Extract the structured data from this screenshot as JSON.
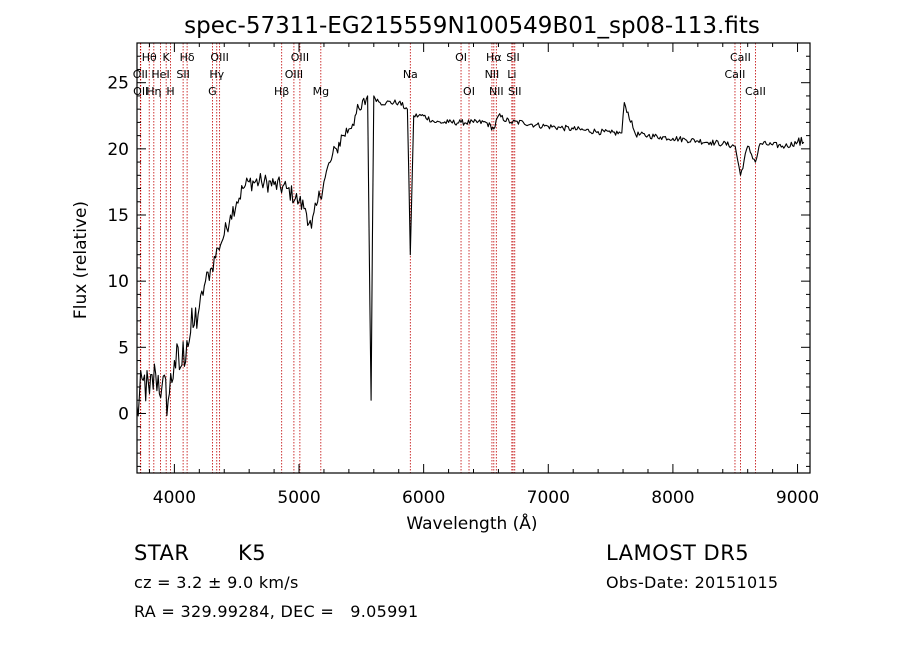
{
  "chart_data": {
    "type": "line",
    "title": "spec-57311-EG215559N100549B01_sp08-113.fits",
    "xlabel": "Wavelength (Å)",
    "ylabel": "Flux (relative)",
    "xlim": [
      3700,
      9100
    ],
    "ylim": [
      -4.5,
      28
    ],
    "x_ticks": [
      4000,
      5000,
      6000,
      7000,
      8000,
      9000
    ],
    "y_ticks": [
      0,
      5,
      10,
      15,
      20,
      25
    ],
    "grid": false,
    "legend": "none",
    "series": [
      {
        "x": [
          3700,
          3750,
          3800,
          3850,
          3900,
          3950,
          4000,
          4050,
          4100,
          4150,
          4200,
          4250,
          4300,
          4350,
          4400,
          4450,
          4500,
          4550,
          4600,
          4700,
          4800,
          4900,
          5000,
          5050,
          5100,
          5150,
          5200,
          5250,
          5300,
          5350,
          5400,
          5450,
          5500,
          5550,
          5578,
          5600,
          5650,
          5700,
          5800,
          5870,
          5893,
          5920,
          6000,
          6100,
          6200,
          6300,
          6400,
          6500,
          6563,
          6600,
          6700,
          6800,
          6900,
          7000,
          7100,
          7200,
          7300,
          7400,
          7500,
          7590,
          7610,
          7700,
          7800,
          7900,
          8000,
          8100,
          8200,
          8300,
          8400,
          8500,
          8542,
          8600,
          8662,
          8700,
          8800,
          8900,
          9000,
          9050
        ],
        "y": [
          0,
          2.5,
          1.5,
          3,
          2,
          1,
          4,
          3.5,
          5.5,
          6.5,
          8,
          10,
          11,
          12.5,
          13.5,
          15,
          16,
          17,
          17.5,
          17.5,
          17.3,
          17,
          16,
          15.5,
          14,
          16,
          17.5,
          19,
          20,
          21,
          21.5,
          22.5,
          23,
          24,
          1,
          24,
          23.5,
          23.5,
          23.5,
          23,
          12,
          22.5,
          22.5,
          22,
          22,
          22,
          22,
          22,
          21.5,
          22.5,
          22,
          22,
          21.8,
          21.7,
          21.6,
          21.5,
          21.4,
          21.3,
          21.2,
          21.2,
          23.5,
          21.1,
          21,
          20.9,
          20.8,
          20.7,
          20.6,
          20.5,
          20.4,
          20.2,
          18,
          20.2,
          19,
          20.4,
          20.3,
          20.2,
          20.5,
          20.5
        ]
      }
    ],
    "lines": [
      {
        "label": "Hθ",
        "x": 3798,
        "row": 0
      },
      {
        "label": "OII",
        "x": 3727,
        "row": 1
      },
      {
        "label": "OII",
        "x": 3730,
        "row": 2
      },
      {
        "label": "Hη",
        "x": 3835,
        "row": 2
      },
      {
        "label": "K",
        "x": 3934,
        "row": 0
      },
      {
        "label": "HeI",
        "x": 3889,
        "row": 1
      },
      {
        "label": "H",
        "x": 3969,
        "row": 2
      },
      {
        "label": "Hδ",
        "x": 4102,
        "row": 0
      },
      {
        "label": "SII",
        "x": 4070,
        "row": 1
      },
      {
        "label": "OIII",
        "x": 4363,
        "row": 0
      },
      {
        "label": "Hγ",
        "x": 4340,
        "row": 1
      },
      {
        "label": "G",
        "x": 4305,
        "row": 2
      },
      {
        "label": "OIII",
        "x": 5007,
        "row": 0
      },
      {
        "label": "OIII",
        "x": 4959,
        "row": 1
      },
      {
        "label": "Hβ",
        "x": 4861,
        "row": 2
      },
      {
        "label": "Mg",
        "x": 5175,
        "row": 2
      },
      {
        "label": "Na",
        "x": 5893,
        "row": 1
      },
      {
        "label": "OI",
        "x": 6300,
        "row": 0
      },
      {
        "label": "OI",
        "x": 6364,
        "row": 2
      },
      {
        "label": "Hα",
        "x": 6563,
        "row": 0
      },
      {
        "label": "NII",
        "x": 6548,
        "row": 1
      },
      {
        "label": "NII",
        "x": 6583,
        "row": 2
      },
      {
        "label": "SII",
        "x": 6717,
        "row": 0
      },
      {
        "label": "Li",
        "x": 6708,
        "row": 1
      },
      {
        "label": "SII",
        "x": 6731,
        "row": 2
      },
      {
        "label": "CaII",
        "x": 8542,
        "row": 0
      },
      {
        "label": "CaII",
        "x": 8498,
        "row": 1
      },
      {
        "label": "CaII",
        "x": 8662,
        "row": 2
      }
    ]
  },
  "info": {
    "class": "STAR",
    "subclass": "K5",
    "survey": "LAMOST DR5",
    "cz": "cz = 3.2 ± 9.0 km/s",
    "obs_date": "Obs-Date: 20151015",
    "radec": "RA = 329.99284, DEC =   9.05991"
  },
  "colors": {
    "spectrum": "#000000",
    "line_marker": "#c00000"
  }
}
